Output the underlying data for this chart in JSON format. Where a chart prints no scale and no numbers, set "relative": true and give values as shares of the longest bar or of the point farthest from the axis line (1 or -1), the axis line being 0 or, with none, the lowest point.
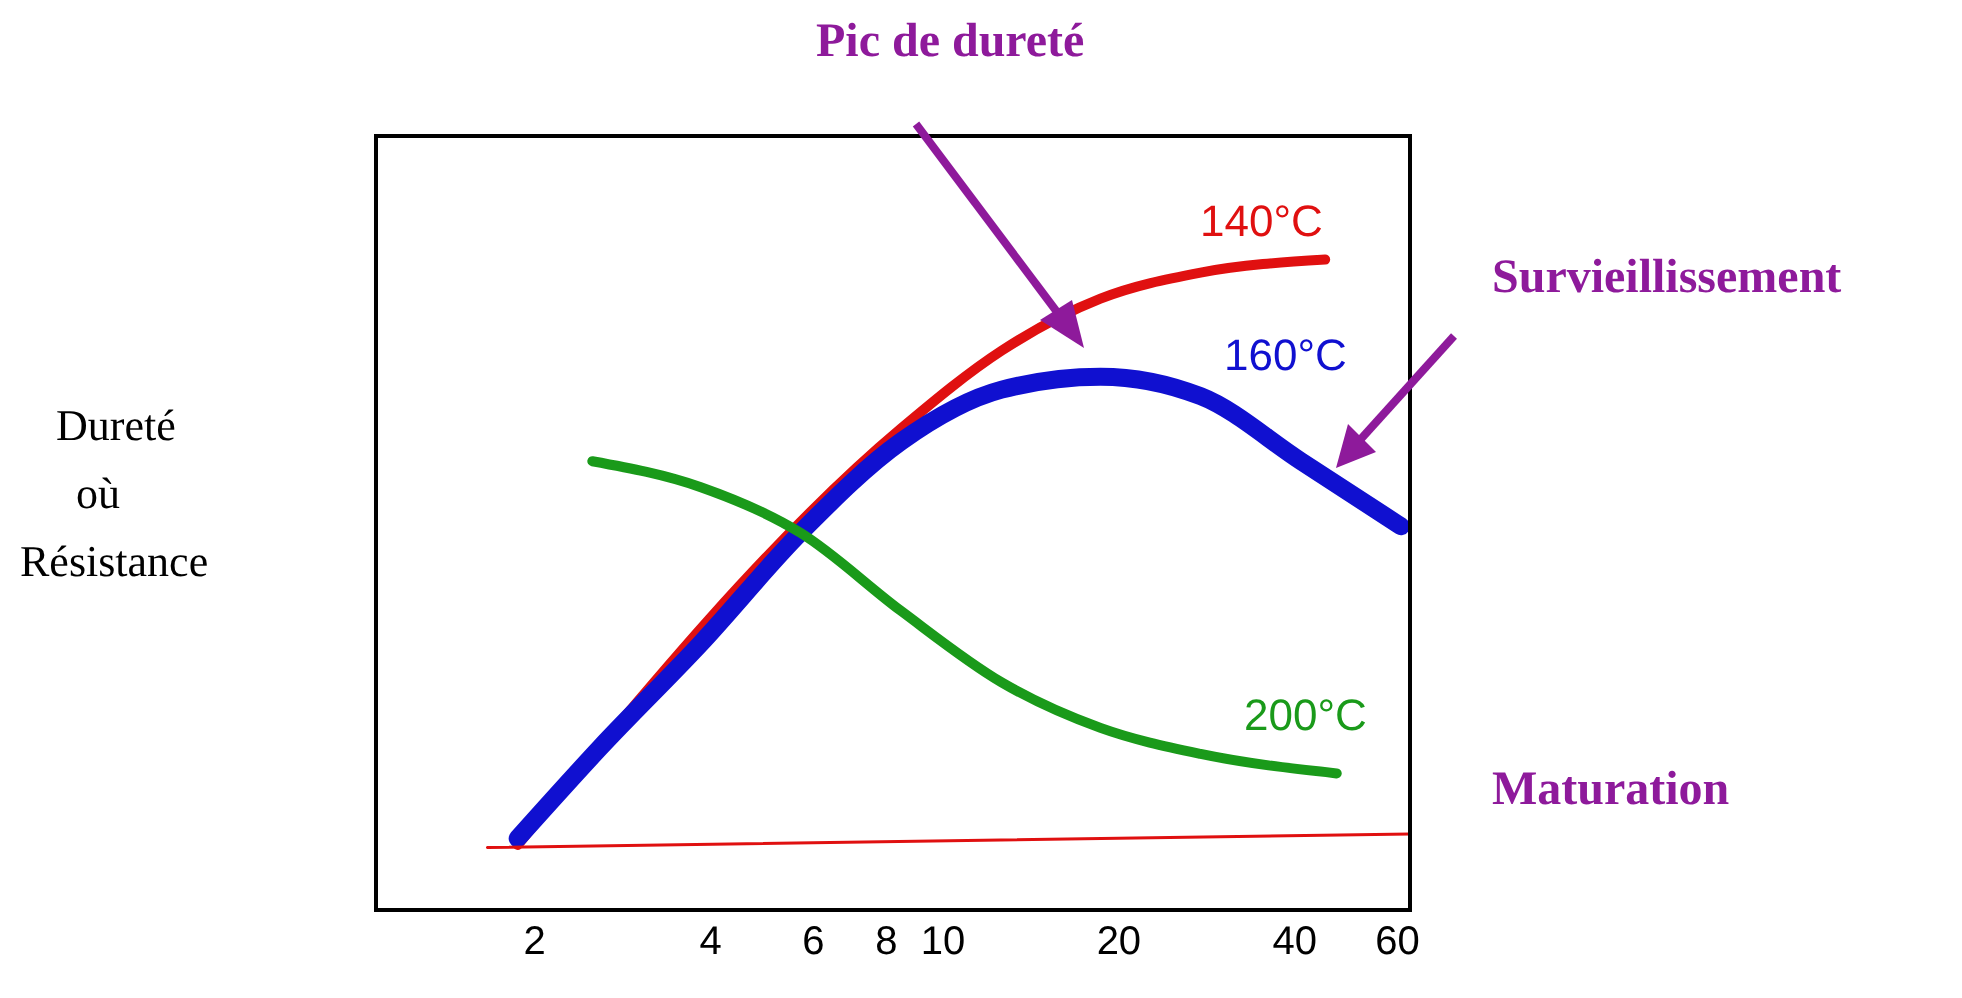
{
  "chart_data": {
    "type": "line",
    "ylabel": "Dureté où Résistance",
    "relative": true,
    "log": "x",
    "xlim": [
      1.07,
      63
    ],
    "xticks": [
      2,
      4,
      6,
      8,
      10,
      20,
      40,
      60
    ],
    "tick_labels": "x",
    "marker": "none",
    "line_style": "solid",
    "annotations": [
      "Pic de dureté",
      "Survieillissement",
      "Maturation"
    ],
    "series": [
      {
        "name": "140°C",
        "color": "#e01010",
        "x": [
          1.87,
          2.59,
          3.85,
          5.7,
          8.47,
          12.6,
          18.6,
          27.6,
          45.1
        ],
        "values": [
          0.1,
          null,
          null,
          null,
          0.74,
          0.86,
          0.94,
          0.98,
          1
        ]
      },
      {
        "name": "160°C",
        "color": "#1010d0",
        "x": [
          1.87,
          2.59,
          3.85,
          5.7,
          8.47,
          12.6,
          18.6,
          27.6,
          41,
          60.8
        ],
        "values": [
          0.11,
          0.25,
          0.41,
          0.58,
          0.72,
          0.8,
          0.82,
          0.79,
          0.69,
          0.59
        ]
      },
      {
        "name": "200°C",
        "color": "#1a9a1a",
        "x": [
          2.51,
          3.85,
          5.7,
          8.47,
          12.6,
          18.6,
          27.6,
          47.2
        ],
        "values": [
          0.69,
          0.65,
          0.58,
          0.46,
          0.35,
          0.28,
          0.24,
          0.21
        ]
      },
      {
        "color": "#e01010",
        "x": [
          1.66,
          63
        ],
        "values": [
          0.096,
          0.117
        ]
      }
    ]
  }
}
